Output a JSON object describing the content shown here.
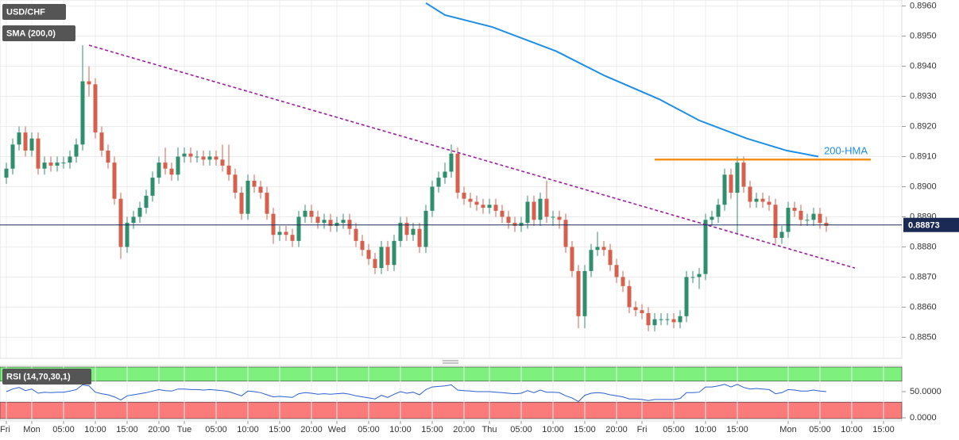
{
  "chart_data": [
    {
      "type": "candlestick",
      "title": "USD/CHF",
      "x": [
        -4,
        -3,
        -2,
        -1,
        0,
        1,
        2,
        3,
        4,
        5,
        6,
        7,
        8,
        9,
        10,
        11,
        12,
        13,
        14,
        15,
        16,
        17,
        18,
        19,
        20,
        21,
        22,
        23,
        24,
        25,
        26,
        27,
        28,
        29,
        30,
        31,
        32,
        33,
        34,
        35,
        36,
        37,
        38,
        39,
        40,
        41,
        42,
        43,
        44,
        45,
        46,
        47,
        48,
        49,
        50,
        51,
        52,
        53,
        54,
        55,
        56,
        57,
        58,
        59,
        60,
        61,
        62,
        63,
        64,
        65,
        66,
        67,
        68,
        69,
        70,
        71,
        72,
        73,
        74,
        75,
        76,
        77,
        78,
        79,
        80,
        81,
        82,
        83,
        84,
        85,
        86,
        87,
        88,
        89,
        90,
        91,
        92,
        93,
        94,
        95,
        96,
        97,
        98,
        99,
        100,
        101,
        102,
        103,
        104,
        105,
        106,
        107,
        108,
        109,
        110,
        111,
        112,
        113,
        114,
        115,
        116,
        117,
        118,
        119,
        120,
        121,
        122,
        123,
        124,
        125
      ],
      "open": [
        0.8903,
        0.8906,
        0.8914,
        0.8918,
        0.8912,
        0.8916,
        0.8906,
        0.8908,
        0.8907,
        0.8908,
        0.8908,
        0.891,
        0.8914,
        0.8935,
        0.8934,
        0.8918,
        0.8912,
        0.8908,
        0.8896,
        0.888,
        0.8888,
        0.889,
        0.8893,
        0.8897,
        0.8903,
        0.8908,
        0.8906,
        0.8904,
        0.891,
        0.8911,
        0.891,
        0.891,
        0.8909,
        0.891,
        0.8909,
        0.8907,
        0.8904,
        0.8898,
        0.8891,
        0.8902,
        0.89,
        0.8898,
        0.8891,
        0.8884,
        0.8885,
        0.8884,
        0.8882,
        0.889,
        0.8892,
        0.889,
        0.8888,
        0.8889,
        0.8887,
        0.8888,
        0.8889,
        0.8886,
        0.8882,
        0.8879,
        0.8876,
        0.8873,
        0.888,
        0.8874,
        0.8882,
        0.8888,
        0.8884,
        0.8886,
        0.888,
        0.8892,
        0.89,
        0.8903,
        0.8905,
        0.8911,
        0.8898,
        0.8896,
        0.8895,
        0.8894,
        0.8893,
        0.8894,
        0.8892,
        0.889,
        0.8888,
        0.8887,
        0.8888,
        0.8895,
        0.8889,
        0.8896,
        0.889,
        0.889,
        0.8889,
        0.888,
        0.8872,
        0.8857,
        0.8872,
        0.8879,
        0.888,
        0.8879,
        0.8874,
        0.887,
        0.8867,
        0.886,
        0.8859,
        0.8858,
        0.8854,
        0.8856,
        0.8856,
        0.8856,
        0.8855,
        0.8857,
        0.887,
        0.887,
        0.8871,
        0.8889,
        0.889,
        0.8894,
        0.8904,
        0.8898,
        0.8908,
        0.89,
        0.8895,
        0.8896,
        0.8895,
        0.8894,
        0.8883,
        0.8885,
        0.8893,
        0.8892,
        0.8889,
        0.8889,
        0.8891,
        0.8888
      ],
      "high": [
        0.8908,
        0.8916,
        0.892,
        0.892,
        0.8918,
        0.8918,
        0.891,
        0.891,
        0.891,
        0.891,
        0.8912,
        0.8916,
        0.8947,
        0.894,
        0.8936,
        0.892,
        0.8914,
        0.891,
        0.8898,
        0.889,
        0.8892,
        0.8895,
        0.8899,
        0.8905,
        0.891,
        0.8913,
        0.8908,
        0.8913,
        0.8913,
        0.8913,
        0.8912,
        0.8912,
        0.8912,
        0.8912,
        0.8914,
        0.8914,
        0.8906,
        0.89,
        0.8904,
        0.8904,
        0.8902,
        0.89,
        0.8893,
        0.8887,
        0.8887,
        0.8886,
        0.8892,
        0.8894,
        0.8894,
        0.8892,
        0.8891,
        0.8891,
        0.889,
        0.8891,
        0.8891,
        0.8888,
        0.8884,
        0.8881,
        0.8878,
        0.8882,
        0.8882,
        0.8884,
        0.889,
        0.889,
        0.8888,
        0.8888,
        0.8894,
        0.8902,
        0.8905,
        0.8908,
        0.8914,
        0.8913,
        0.89,
        0.8898,
        0.8897,
        0.8896,
        0.8896,
        0.8896,
        0.8894,
        0.8892,
        0.889,
        0.889,
        0.8897,
        0.8897,
        0.8898,
        0.8902,
        0.8892,
        0.8892,
        0.8891,
        0.8882,
        0.8874,
        0.8874,
        0.8881,
        0.8885,
        0.8882,
        0.8881,
        0.8876,
        0.8872,
        0.8869,
        0.8862,
        0.8861,
        0.886,
        0.8858,
        0.8858,
        0.8858,
        0.8858,
        0.8859,
        0.8872,
        0.8872,
        0.8873,
        0.8891,
        0.8892,
        0.8896,
        0.8906,
        0.8906,
        0.891,
        0.891,
        0.8902,
        0.8898,
        0.8898,
        0.8897,
        0.8896,
        0.8887,
        0.8895,
        0.8895,
        0.8894,
        0.8891,
        0.8893,
        0.8893,
        0.889
      ],
      "low": [
        0.8901,
        0.8904,
        0.8912,
        0.891,
        0.891,
        0.8904,
        0.8904,
        0.8905,
        0.8905,
        0.8906,
        0.8906,
        0.8908,
        0.8912,
        0.893,
        0.8916,
        0.891,
        0.8906,
        0.8894,
        0.8876,
        0.8878,
        0.8886,
        0.8888,
        0.8891,
        0.8895,
        0.8901,
        0.8904,
        0.8902,
        0.8902,
        0.8908,
        0.8908,
        0.8908,
        0.8907,
        0.8907,
        0.8907,
        0.8905,
        0.8902,
        0.8896,
        0.8889,
        0.8889,
        0.8898,
        0.8896,
        0.8889,
        0.8881,
        0.8882,
        0.8882,
        0.888,
        0.888,
        0.8888,
        0.8888,
        0.8886,
        0.8886,
        0.8885,
        0.8885,
        0.8886,
        0.8884,
        0.888,
        0.8877,
        0.8874,
        0.8871,
        0.8871,
        0.8872,
        0.8872,
        0.888,
        0.8882,
        0.8882,
        0.8878,
        0.8878,
        0.889,
        0.8898,
        0.8901,
        0.8903,
        0.8896,
        0.8894,
        0.8893,
        0.8892,
        0.8891,
        0.8891,
        0.889,
        0.8888,
        0.8886,
        0.8885,
        0.8885,
        0.8886,
        0.8887,
        0.8887,
        0.8888,
        0.8887,
        0.8886,
        0.8878,
        0.887,
        0.8853,
        0.8853,
        0.887,
        0.8877,
        0.8877,
        0.8872,
        0.8868,
        0.8865,
        0.8858,
        0.8857,
        0.8856,
        0.8852,
        0.8852,
        0.8854,
        0.8854,
        0.8853,
        0.8853,
        0.8855,
        0.8868,
        0.8866,
        0.8869,
        0.8887,
        0.8888,
        0.8892,
        0.8896,
        0.8884,
        0.8898,
        0.8893,
        0.8893,
        0.8893,
        0.8892,
        0.8881,
        0.8881,
        0.8883,
        0.889,
        0.8887,
        0.8887,
        0.8887,
        0.8886,
        0.8885
      ],
      "close": [
        0.8906,
        0.8914,
        0.8918,
        0.8912,
        0.8916,
        0.8906,
        0.8908,
        0.8907,
        0.8908,
        0.8908,
        0.891,
        0.8914,
        0.8935,
        0.8934,
        0.8918,
        0.8912,
        0.8908,
        0.8896,
        0.888,
        0.8888,
        0.889,
        0.8893,
        0.8897,
        0.8903,
        0.8908,
        0.8906,
        0.8904,
        0.891,
        0.8911,
        0.891,
        0.891,
        0.8909,
        0.891,
        0.8909,
        0.8907,
        0.8904,
        0.8898,
        0.8891,
        0.8902,
        0.89,
        0.8898,
        0.8891,
        0.8884,
        0.8885,
        0.8884,
        0.8882,
        0.889,
        0.8892,
        0.889,
        0.8888,
        0.8889,
        0.8887,
        0.8888,
        0.8889,
        0.8886,
        0.8882,
        0.8879,
        0.8876,
        0.8873,
        0.888,
        0.8874,
        0.8882,
        0.8888,
        0.8884,
        0.8886,
        0.888,
        0.8892,
        0.89,
        0.8903,
        0.8905,
        0.8911,
        0.8898,
        0.8896,
        0.8895,
        0.8894,
        0.8893,
        0.8894,
        0.8892,
        0.889,
        0.8888,
        0.8887,
        0.8888,
        0.8895,
        0.8889,
        0.8896,
        0.889,
        0.889,
        0.8889,
        0.888,
        0.8872,
        0.8857,
        0.8872,
        0.8879,
        0.888,
        0.8879,
        0.8874,
        0.887,
        0.8867,
        0.886,
        0.8859,
        0.8858,
        0.8854,
        0.8856,
        0.8856,
        0.8856,
        0.8855,
        0.8857,
        0.887,
        0.887,
        0.8871,
        0.8889,
        0.889,
        0.8894,
        0.8904,
        0.8898,
        0.8908,
        0.89,
        0.8895,
        0.8896,
        0.8895,
        0.8894,
        0.8883,
        0.8885,
        0.8893,
        0.8892,
        0.8889,
        0.8889,
        0.8891,
        0.8888,
        0.8887
      ],
      "up_color": "#2f8f6c",
      "down_color": "#d6604d",
      "xlim": [
        -5,
        136.875
      ],
      "xticks": [
        {
          "value": -4,
          "label": "Fri"
        },
        {
          "value": 0,
          "label": "Mon"
        },
        {
          "value": 5,
          "label": "05:00"
        },
        {
          "value": 10,
          "label": "10:00"
        },
        {
          "value": 15,
          "label": "15:00"
        },
        {
          "value": 20,
          "label": "20:00"
        },
        {
          "value": 24,
          "label": "Tue"
        },
        {
          "value": 29,
          "label": "05:00"
        },
        {
          "value": 34,
          "label": "10:00"
        },
        {
          "value": 39,
          "label": "15:00"
        },
        {
          "value": 44,
          "label": "20:00"
        },
        {
          "value": 48,
          "label": "Wed"
        },
        {
          "value": 53,
          "label": "05:00"
        },
        {
          "value": 58,
          "label": "10:00"
        },
        {
          "value": 63,
          "label": "15:00"
        },
        {
          "value": 68,
          "label": "20:00"
        },
        {
          "value": 72,
          "label": "Thu"
        },
        {
          "value": 77,
          "label": "05:00"
        },
        {
          "value": 82,
          "label": "10:00"
        },
        {
          "value": 87,
          "label": "15:00"
        },
        {
          "value": 92,
          "label": "20:00"
        },
        {
          "value": 96,
          "label": "Fri"
        },
        {
          "value": 101,
          "label": "05:00"
        },
        {
          "value": 106,
          "label": "10:00"
        },
        {
          "value": 111,
          "label": "15:00"
        },
        {
          "value": 119,
          "label": "Mon"
        },
        {
          "value": 124,
          "label": "05:00"
        },
        {
          "value": 129,
          "label": "10:00"
        },
        {
          "value": 134,
          "label": "15:00"
        }
      ],
      "ylim": [
        0.8843,
        0.8962
      ],
      "yticks": [
        {
          "value": 0.896,
          "label": "0.8960"
        },
        {
          "value": 0.895,
          "label": "0.8950"
        },
        {
          "value": 0.894,
          "label": "0.8940"
        },
        {
          "value": 0.893,
          "label": "0.8930"
        },
        {
          "value": 0.892,
          "label": "0.8920"
        },
        {
          "value": 0.891,
          "label": "0.8910"
        },
        {
          "value": 0.89,
          "label": "0.8900"
        },
        {
          "value": 0.889,
          "label": "0.8890"
        },
        {
          "value": 0.888,
          "label": "0.8880"
        },
        {
          "value": 0.887,
          "label": "0.8870"
        },
        {
          "value": 0.886,
          "label": "0.8860"
        },
        {
          "value": 0.885,
          "label": "0.8850"
        }
      ],
      "grid": true,
      "sma": {
        "name": "SMA (200,0)",
        "color": "#1e8ee6",
        "x": [
          62,
          65,
          72.5,
          82.5,
          90,
          98.75,
          105,
          112.5,
          118.75,
          123.75
        ],
        "values": [
          0.8961,
          0.8957,
          0.8953,
          0.8945,
          0.8937,
          0.8929,
          0.8922,
          0.8916,
          0.8912,
          0.891
        ]
      },
      "trendline": {
        "color": "#9b1d9f",
        "x": [
          9,
          129.5
        ],
        "values": [
          0.8947,
          0.8873
        ]
      },
      "resistance": {
        "color": "#f5921e",
        "x": [
          98,
          132
        ],
        "values": [
          0.8909,
          0.8909
        ],
        "label": "200-HMA"
      },
      "last_price": {
        "value": 0.88873,
        "label": "0.88873",
        "color": "#1b2a55"
      }
    },
    {
      "type": "line",
      "title": "RSI (14,70,30,1)",
      "color": "#2c5fd1",
      "values": [
        50,
        55,
        58,
        52,
        55,
        47,
        49,
        48,
        49,
        49,
        51,
        54,
        63,
        61,
        49,
        46,
        44,
        40,
        34,
        42,
        44,
        46,
        48,
        51,
        54,
        52,
        51,
        55,
        55,
        54,
        54,
        53,
        54,
        53,
        52,
        50,
        46,
        42,
        51,
        50,
        48,
        44,
        40,
        41,
        40,
        39,
        46,
        48,
        47,
        45,
        46,
        45,
        46,
        47,
        45,
        42,
        40,
        38,
        36,
        43,
        39,
        45,
        50,
        47,
        49,
        44,
        54,
        59,
        60,
        61,
        63,
        53,
        52,
        51,
        50,
        50,
        50,
        49,
        48,
        47,
        46,
        47,
        52,
        48,
        53,
        49,
        49,
        48,
        42,
        38,
        31,
        43,
        47,
        48,
        47,
        44,
        42,
        40,
        36,
        36,
        35,
        33,
        35,
        35,
        35,
        35,
        37,
        48,
        48,
        49,
        59,
        59,
        61,
        64,
        59,
        64,
        58,
        55,
        56,
        55,
        54,
        46,
        48,
        54,
        53,
        51,
        51,
        53,
        51,
        50
      ],
      "ylim": [
        0,
        100
      ],
      "yticks": [
        {
          "value": 50,
          "label": "50.0000"
        },
        {
          "value": 0,
          "label": "0.0000"
        }
      ],
      "overbought": 70,
      "oversold": 30,
      "overbought_color": "#7ef07e",
      "oversold_color": "#fb7b7b"
    }
  ]
}
